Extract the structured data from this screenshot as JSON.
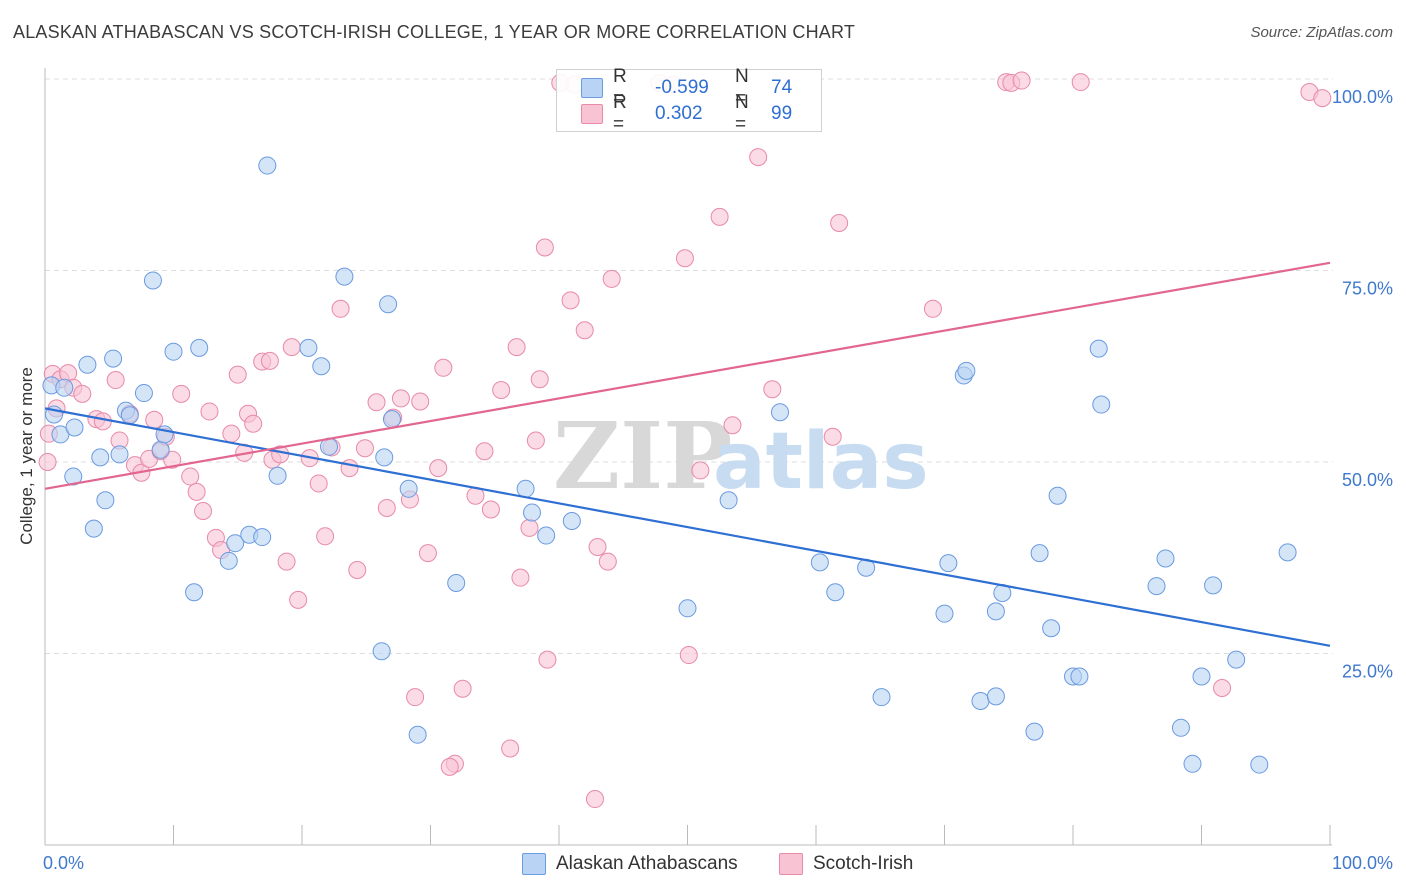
{
  "title": "ALASKAN ATHABASCAN VS SCOTCH-IRISH COLLEGE, 1 YEAR OR MORE CORRELATION CHART",
  "source": "Source: ZipAtlas.com",
  "watermark": {
    "zip": "ZIP",
    "atlas": "atlas"
  },
  "legend": {
    "rows": [
      {
        "r_label": "R =",
        "r_value": "-0.599",
        "n_label": "N =",
        "n_value": "74"
      },
      {
        "r_label": "R =",
        "r_value": "0.302",
        "n_label": "N =",
        "n_value": "99"
      }
    ]
  },
  "bottom_legend": [
    "Alaskan Athabascans",
    "Scotch-Irish"
  ],
  "colors": {
    "blue_fill": "#b9d3f4",
    "blue_stroke": "#6a9ae0",
    "blue_line": "#2e6fd3",
    "pink_fill": "#f8c3d3",
    "pink_stroke": "#e88aa8",
    "pink_line": "#e2668f",
    "axis_text": "#3f79cc",
    "grid": "#dddddd"
  },
  "chart_data": {
    "type": "scatter",
    "title": "ALASKAN ATHABASCAN VS SCOTCH-IRISH COLLEGE, 1 YEAR OR MORE CORRELATION CHART",
    "xlabel": "",
    "ylabel": "College, 1 year or more",
    "xlim": [
      0,
      100
    ],
    "ylim": [
      0,
      100
    ],
    "x_tick_labels": [
      "0.0%",
      "100.0%"
    ],
    "y_ticks": [
      25,
      50,
      75,
      100
    ],
    "y_tick_labels": [
      "25.0%",
      "50.0%",
      "75.0%",
      "100.0%"
    ],
    "grid": true,
    "legend_position": "top-center",
    "series": [
      {
        "name": "Alaskan Athabascans",
        "r": -0.599,
        "n": 74,
        "trend": {
          "x": [
            0,
            100
          ],
          "y": [
            57,
            26
          ]
        },
        "points": [
          [
            0.5,
            60
          ],
          [
            0.7,
            56.2
          ],
          [
            1.2,
            53.6
          ],
          [
            1.5,
            59.7
          ],
          [
            2.2,
            48.1
          ],
          [
            2.3,
            54.5
          ],
          [
            3.3,
            62.7
          ],
          [
            3.8,
            41.3
          ],
          [
            4.3,
            50.6
          ],
          [
            4.7,
            45
          ],
          [
            5.3,
            63.5
          ],
          [
            5.8,
            51
          ],
          [
            6.3,
            56.7
          ],
          [
            6.6,
            56.1
          ],
          [
            7.7,
            59
          ],
          [
            8.4,
            73.7
          ],
          [
            9.0,
            51.6
          ],
          [
            9.3,
            53.6
          ],
          [
            10,
            64.4
          ],
          [
            11.6,
            33
          ],
          [
            12,
            64.9
          ],
          [
            14.3,
            37.1
          ],
          [
            14.8,
            39.4
          ],
          [
            15.9,
            40.5
          ],
          [
            17.3,
            88.7
          ],
          [
            16.9,
            40.2
          ],
          [
            18.1,
            48.2
          ],
          [
            20.5,
            64.9
          ],
          [
            21.5,
            62.5
          ],
          [
            22.1,
            52
          ],
          [
            23.3,
            74.2
          ],
          [
            26.2,
            25.3
          ],
          [
            26.4,
            50.6
          ],
          [
            26.7,
            70.6
          ],
          [
            27.0,
            55.6
          ],
          [
            28.3,
            46.5
          ],
          [
            29,
            14.4
          ],
          [
            32,
            34.2
          ],
          [
            37.4,
            46.5
          ],
          [
            37.9,
            43.4
          ],
          [
            39,
            40.4
          ],
          [
            41,
            42.3
          ],
          [
            50,
            30.9
          ],
          [
            53.2,
            45
          ],
          [
            57.2,
            56.5
          ],
          [
            60.3,
            36.9
          ],
          [
            61.5,
            33
          ],
          [
            63.9,
            36.2
          ],
          [
            65.1,
            19.3
          ],
          [
            70,
            30.2
          ],
          [
            70.3,
            36.8
          ],
          [
            71.5,
            61.3
          ],
          [
            71.7,
            61.9
          ],
          [
            72.8,
            18.8
          ],
          [
            74,
            19.4
          ],
          [
            74,
            30.5
          ],
          [
            74.5,
            32.9
          ],
          [
            77,
            14.8
          ],
          [
            77.4,
            38.1
          ],
          [
            78.3,
            28.3
          ],
          [
            78.8,
            45.6
          ],
          [
            80,
            22
          ],
          [
            80.5,
            22
          ],
          [
            82,
            64.8
          ],
          [
            82.2,
            57.5
          ],
          [
            86.5,
            33.8
          ],
          [
            87.2,
            37.4
          ],
          [
            88.4,
            15.3
          ],
          [
            89.3,
            10.6
          ],
          [
            90,
            22
          ],
          [
            90.9,
            33.9
          ],
          [
            92.7,
            24.2
          ],
          [
            94.5,
            10.5
          ],
          [
            96.7,
            38.2
          ]
        ]
      },
      {
        "name": "Scotch-Irish",
        "r": 0.302,
        "n": 99,
        "trend": {
          "x": [
            0,
            100
          ],
          "y": [
            46.5,
            76
          ]
        },
        "points": [
          [
            0.3,
            53.7
          ],
          [
            0.6,
            61.5
          ],
          [
            1.2,
            60.8
          ],
          [
            1.8,
            61.6
          ],
          [
            2.2,
            59.7
          ],
          [
            2.9,
            58.9
          ],
          [
            4.0,
            55.6
          ],
          [
            4.5,
            55.3
          ],
          [
            5.5,
            60.7
          ],
          [
            5.8,
            52.8
          ],
          [
            6.6,
            56.3
          ],
          [
            7.0,
            49.6
          ],
          [
            7.5,
            48.6
          ],
          [
            8.1,
            50.4
          ],
          [
            8.5,
            55.5
          ],
          [
            9.0,
            51.4
          ],
          [
            9.4,
            53.3
          ],
          [
            9.9,
            50.3
          ],
          [
            10.6,
            58.9
          ],
          [
            11.3,
            48.1
          ],
          [
            11.8,
            46.1
          ],
          [
            12.3,
            43.6
          ],
          [
            12.8,
            56.6
          ],
          [
            13.3,
            40.1
          ],
          [
            13.7,
            38.5
          ],
          [
            14.5,
            53.7
          ],
          [
            15.0,
            61.4
          ],
          [
            15.5,
            51.2
          ],
          [
            15.8,
            56.3
          ],
          [
            16.2,
            55
          ],
          [
            16.9,
            63.1
          ],
          [
            17.5,
            63.2
          ],
          [
            17.7,
            50.3
          ],
          [
            18.3,
            51
          ],
          [
            18.8,
            37
          ],
          [
            19.2,
            65
          ],
          [
            19.7,
            32
          ],
          [
            20.6,
            50.5
          ],
          [
            21.3,
            47.2
          ],
          [
            21.8,
            40.3
          ],
          [
            22.3,
            51.9
          ],
          [
            23.0,
            70
          ],
          [
            23.7,
            49.2
          ],
          [
            24.3,
            35.9
          ],
          [
            24.9,
            51.8
          ],
          [
            25.8,
            57.8
          ],
          [
            26.6,
            44
          ],
          [
            27.1,
            55.8
          ],
          [
            27.7,
            58.3
          ],
          [
            28.4,
            45.1
          ],
          [
            28.8,
            19.3
          ],
          [
            29.2,
            57.9
          ],
          [
            29.8,
            38.1
          ],
          [
            30.6,
            49.2
          ],
          [
            31.0,
            62.3
          ],
          [
            31.9,
            10.6
          ],
          [
            31.5,
            10.2
          ],
          [
            32.5,
            20.4
          ],
          [
            33.5,
            45.6
          ],
          [
            34.2,
            51.4
          ],
          [
            34.7,
            43.8
          ],
          [
            35.5,
            59.4
          ],
          [
            36.2,
            12.6
          ],
          [
            36.7,
            65
          ],
          [
            37.0,
            34.9
          ],
          [
            37.7,
            41.4
          ],
          [
            38.2,
            52.8
          ],
          [
            38.5,
            60.8
          ],
          [
            38.9,
            78
          ],
          [
            39.1,
            24.2
          ],
          [
            40.1,
            99.5
          ],
          [
            40.9,
            71.1
          ],
          [
            41.2,
            99.3
          ],
          [
            42.0,
            67.2
          ],
          [
            42.8,
            6
          ],
          [
            43.0,
            38.9
          ],
          [
            43.8,
            37
          ],
          [
            44.1,
            73.9
          ],
          [
            47.8,
            99.5
          ],
          [
            48.9,
            99.3
          ],
          [
            49.8,
            76.6
          ],
          [
            50.1,
            24.8
          ],
          [
            51,
            48.9
          ],
          [
            52.5,
            82
          ],
          [
            53.5,
            54.8
          ],
          [
            55.5,
            89.8
          ],
          [
            56.6,
            59.5
          ],
          [
            61.3,
            53.3
          ],
          [
            61.8,
            81.2
          ],
          [
            69.1,
            70
          ],
          [
            74.8,
            99.6
          ],
          [
            75.2,
            99.5
          ],
          [
            76,
            99.8
          ],
          [
            80.6,
            99.6
          ],
          [
            91.6,
            20.5
          ],
          [
            98.4,
            98.3
          ],
          [
            99.4,
            97.5
          ],
          [
            0.2,
            50
          ],
          [
            0.9,
            57
          ]
        ]
      }
    ]
  }
}
